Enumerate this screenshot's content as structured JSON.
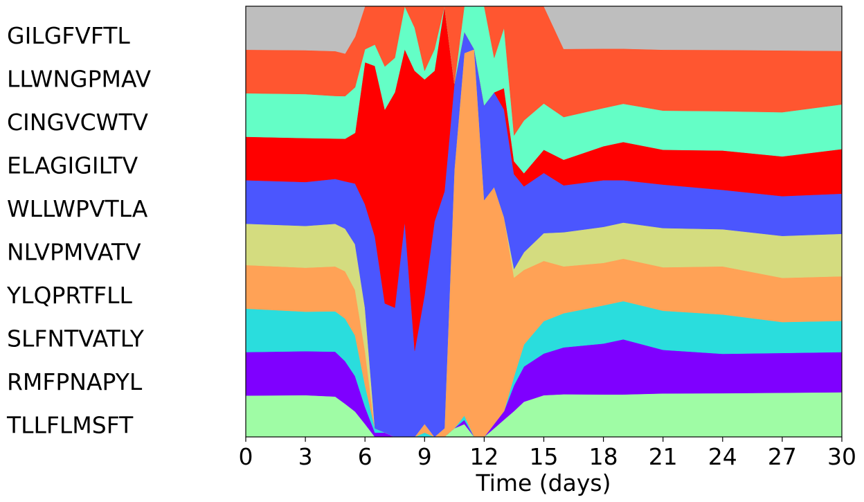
{
  "chart_data": {
    "type": "area",
    "subtype": "stacked-proportion",
    "xlabel": "Time (days)",
    "xlim": [
      0,
      30
    ],
    "xticks": [
      0,
      3,
      6,
      9,
      12,
      15,
      18,
      21,
      24,
      27,
      30
    ],
    "ylim": [
      0,
      1
    ],
    "grid": false,
    "legend_placement": "left",
    "x": [
      0,
      3,
      4.5,
      5,
      5.5,
      6,
      6.5,
      7,
      7.5,
      8,
      8.5,
      9,
      9.5,
      10,
      10.5,
      11,
      11.5,
      12,
      12.5,
      13,
      13.5,
      14,
      15,
      16,
      18,
      19,
      21,
      24,
      27,
      30
    ],
    "series": [
      {
        "name": "TLLFLMSFT",
        "color": "#9ffca5",
        "values": [
          0.095,
          0.095,
          0.09,
          0.07,
          0.05,
          0.03,
          0,
          0,
          0,
          0,
          0,
          0,
          0,
          0,
          0.02,
          0.03,
          0,
          0,
          0.02,
          0.04,
          0.06,
          0.08,
          0.09,
          0.1,
          0.1,
          0.1,
          0.1,
          0.1,
          0.1,
          0.1
        ]
      },
      {
        "name": "RMFPNAPYL",
        "color": "#7f00ff",
        "values": [
          0.1,
          0.1,
          0.1,
          0.09,
          0.07,
          0.04,
          0.01,
          0.01,
          0,
          0,
          0,
          0,
          0,
          0,
          0,
          0.01,
          0,
          0,
          0.01,
          0.02,
          0.06,
          0.08,
          0.09,
          0.11,
          0.12,
          0.13,
          0.1,
          0.09,
          0.09,
          0.09
        ]
      },
      {
        "name": "SLFNTVATLY",
        "color": "#2adddd",
        "values": [
          0.1,
          0.09,
          0.09,
          0.09,
          0.08,
          0.05,
          0.01,
          0,
          0,
          0,
          0,
          0.01,
          0,
          0,
          0,
          0.01,
          0,
          0,
          0,
          0,
          0.02,
          0.05,
          0.07,
          0.08,
          0.09,
          0.09,
          0.09,
          0.09,
          0.07,
          0.07
        ]
      },
      {
        "name": "YLQPRTFLL",
        "color": "#ffa256",
        "values": [
          0.1,
          0.1,
          0.1,
          0.1,
          0.09,
          0.08,
          0,
          0,
          0,
          0,
          0,
          0.02,
          0,
          0.02,
          0.6,
          0.85,
          0.9,
          0.55,
          0.55,
          0.45,
          0.23,
          0.17,
          0.13,
          0.11,
          0.1,
          0.1,
          0.1,
          0.11,
          0.1,
          0.1
        ]
      },
      {
        "name": "NLVPMVATV",
        "color": "#d4dc7f",
        "values": [
          0.095,
          0.095,
          0.095,
          0.09,
          0.09,
          0.1,
          0,
          0,
          0,
          0,
          0,
          0,
          0,
          0,
          0,
          0,
          0,
          0,
          0,
          0,
          0.02,
          0.04,
          0.06,
          0.08,
          0.085,
          0.085,
          0.09,
          0.085,
          0.095,
          0.095
        ]
      },
      {
        "name": "WLLWPVTLA",
        "color": "#4b56fe",
        "values": [
          0.1,
          0.1,
          0.1,
          0.1,
          0.12,
          0.24,
          0.45,
          0.3,
          0.3,
          0.5,
          0.2,
          0.3,
          0.5,
          0.55,
          0.2,
          0.05,
          0,
          0.22,
          0.22,
          0.25,
          0.22,
          0.15,
          0.13,
          0.11,
          0.11,
          0.1,
          0.1,
          0.09,
          0.09,
          0.09
        ]
      },
      {
        "name": "ELAGIGILTV",
        "color": "#ff0000",
        "values": [
          0.1,
          0.1,
          0.09,
          0.09,
          0.1,
          0.33,
          0.4,
          0.45,
          0.5,
          0.4,
          0.65,
          0.5,
          0.35,
          0.43,
          0,
          0,
          0,
          0,
          0,
          0.05,
          0.03,
          0.03,
          0.05,
          0.06,
          0.08,
          0.09,
          0.08,
          0.09,
          0.09,
          0.1
        ]
      },
      {
        "name": "CINGVCWTV",
        "color": "#64fec6",
        "values": [
          0.1,
          0.1,
          0.095,
          0.09,
          0.09,
          0.03,
          0.05,
          0.1,
          0.08,
          0.1,
          0.1,
          0.02,
          0.05,
          0,
          0,
          0.06,
          0.1,
          0.23,
          0.08,
          0.14,
          0.06,
          0.12,
          0.1,
          0.1,
          0.09,
          0.09,
          0.09,
          0.09,
          0.1,
          0.1
        ]
      },
      {
        "name": "LLWNGPMAV",
        "color": "#ff5630",
        "values": [
          0.1,
          0.1,
          0.1,
          0.09,
          0.1,
          0.1,
          0.09,
          0.14,
          0.12,
          0,
          0.05,
          0.15,
          0.1,
          0,
          0.18,
          0,
          0,
          0,
          0.12,
          0.05,
          0.3,
          0.26,
          0.21,
          0.16,
          0.14,
          0.13,
          0.14,
          0.14,
          0.14,
          0.12
        ]
      },
      {
        "name": "GILGFVFTL",
        "color": "#bebebe",
        "values": [
          0.1,
          0.1,
          0.1,
          0.1,
          0.06,
          0,
          0,
          0,
          0,
          0,
          0,
          0,
          0,
          0,
          0,
          0,
          0,
          0,
          0,
          0,
          0,
          0,
          0,
          0.1,
          0.1,
          0.1,
          0.1,
          0.1,
          0.1,
          0.1
        ]
      }
    ]
  }
}
